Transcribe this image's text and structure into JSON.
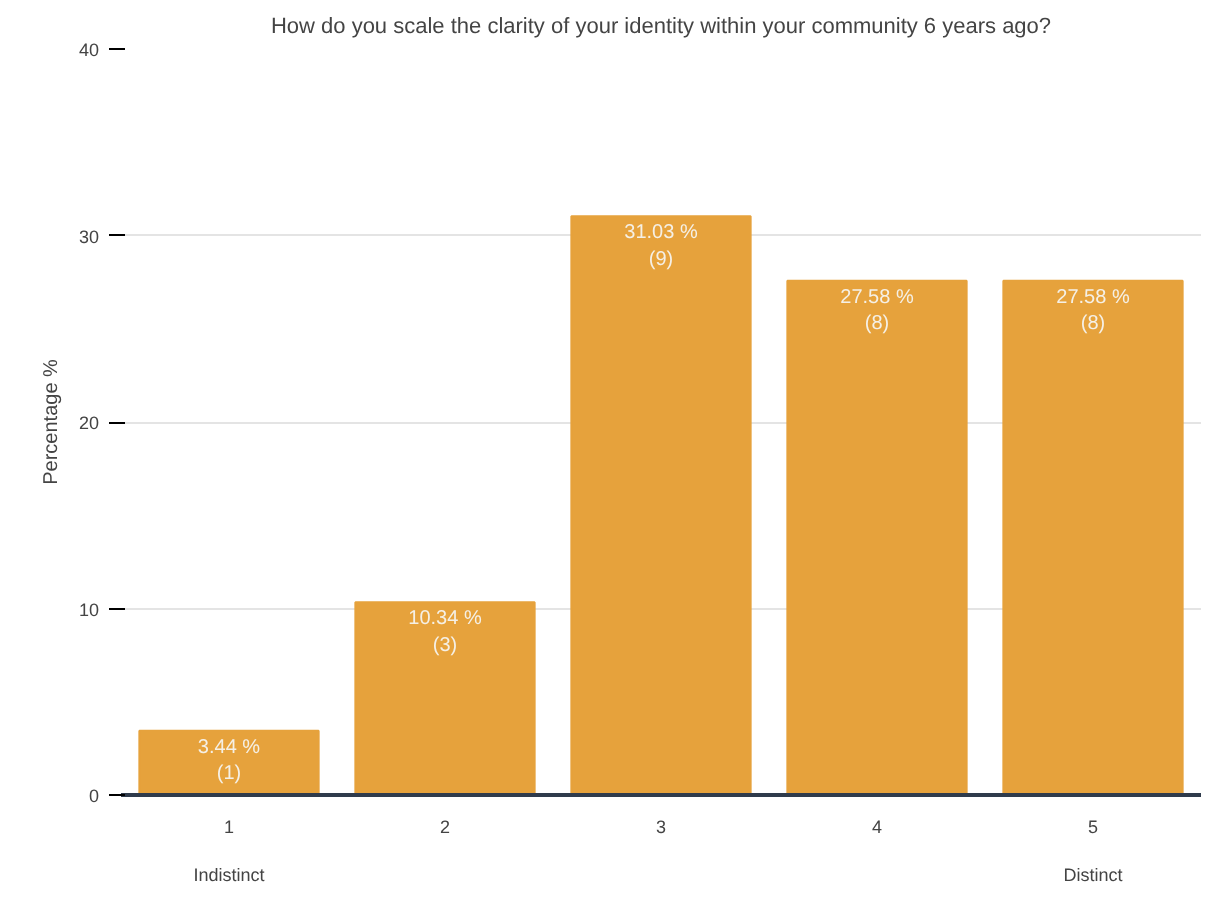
{
  "chart_data": {
    "type": "bar",
    "title": "How do you scale the clarity of your identity within your community 6 years ago?",
    "ylabel": "Percentage %",
    "categories": [
      "1",
      "2",
      "3",
      "4",
      "5"
    ],
    "values": [
      3.44,
      10.34,
      31.03,
      27.58,
      27.58
    ],
    "value_labels": [
      "3.44 %\n(1)",
      "10.34 %\n(3)",
      "31.03 %\n(9)",
      "27.58 %\n(8)",
      "27.58 %\n(8)"
    ],
    "color": "#e6a23c",
    "ylim": [
      0,
      40
    ],
    "yticks": [
      0,
      10,
      20,
      30,
      40
    ],
    "grid": "y",
    "annotations": [
      "Indistinct",
      "Distinct"
    ]
  }
}
